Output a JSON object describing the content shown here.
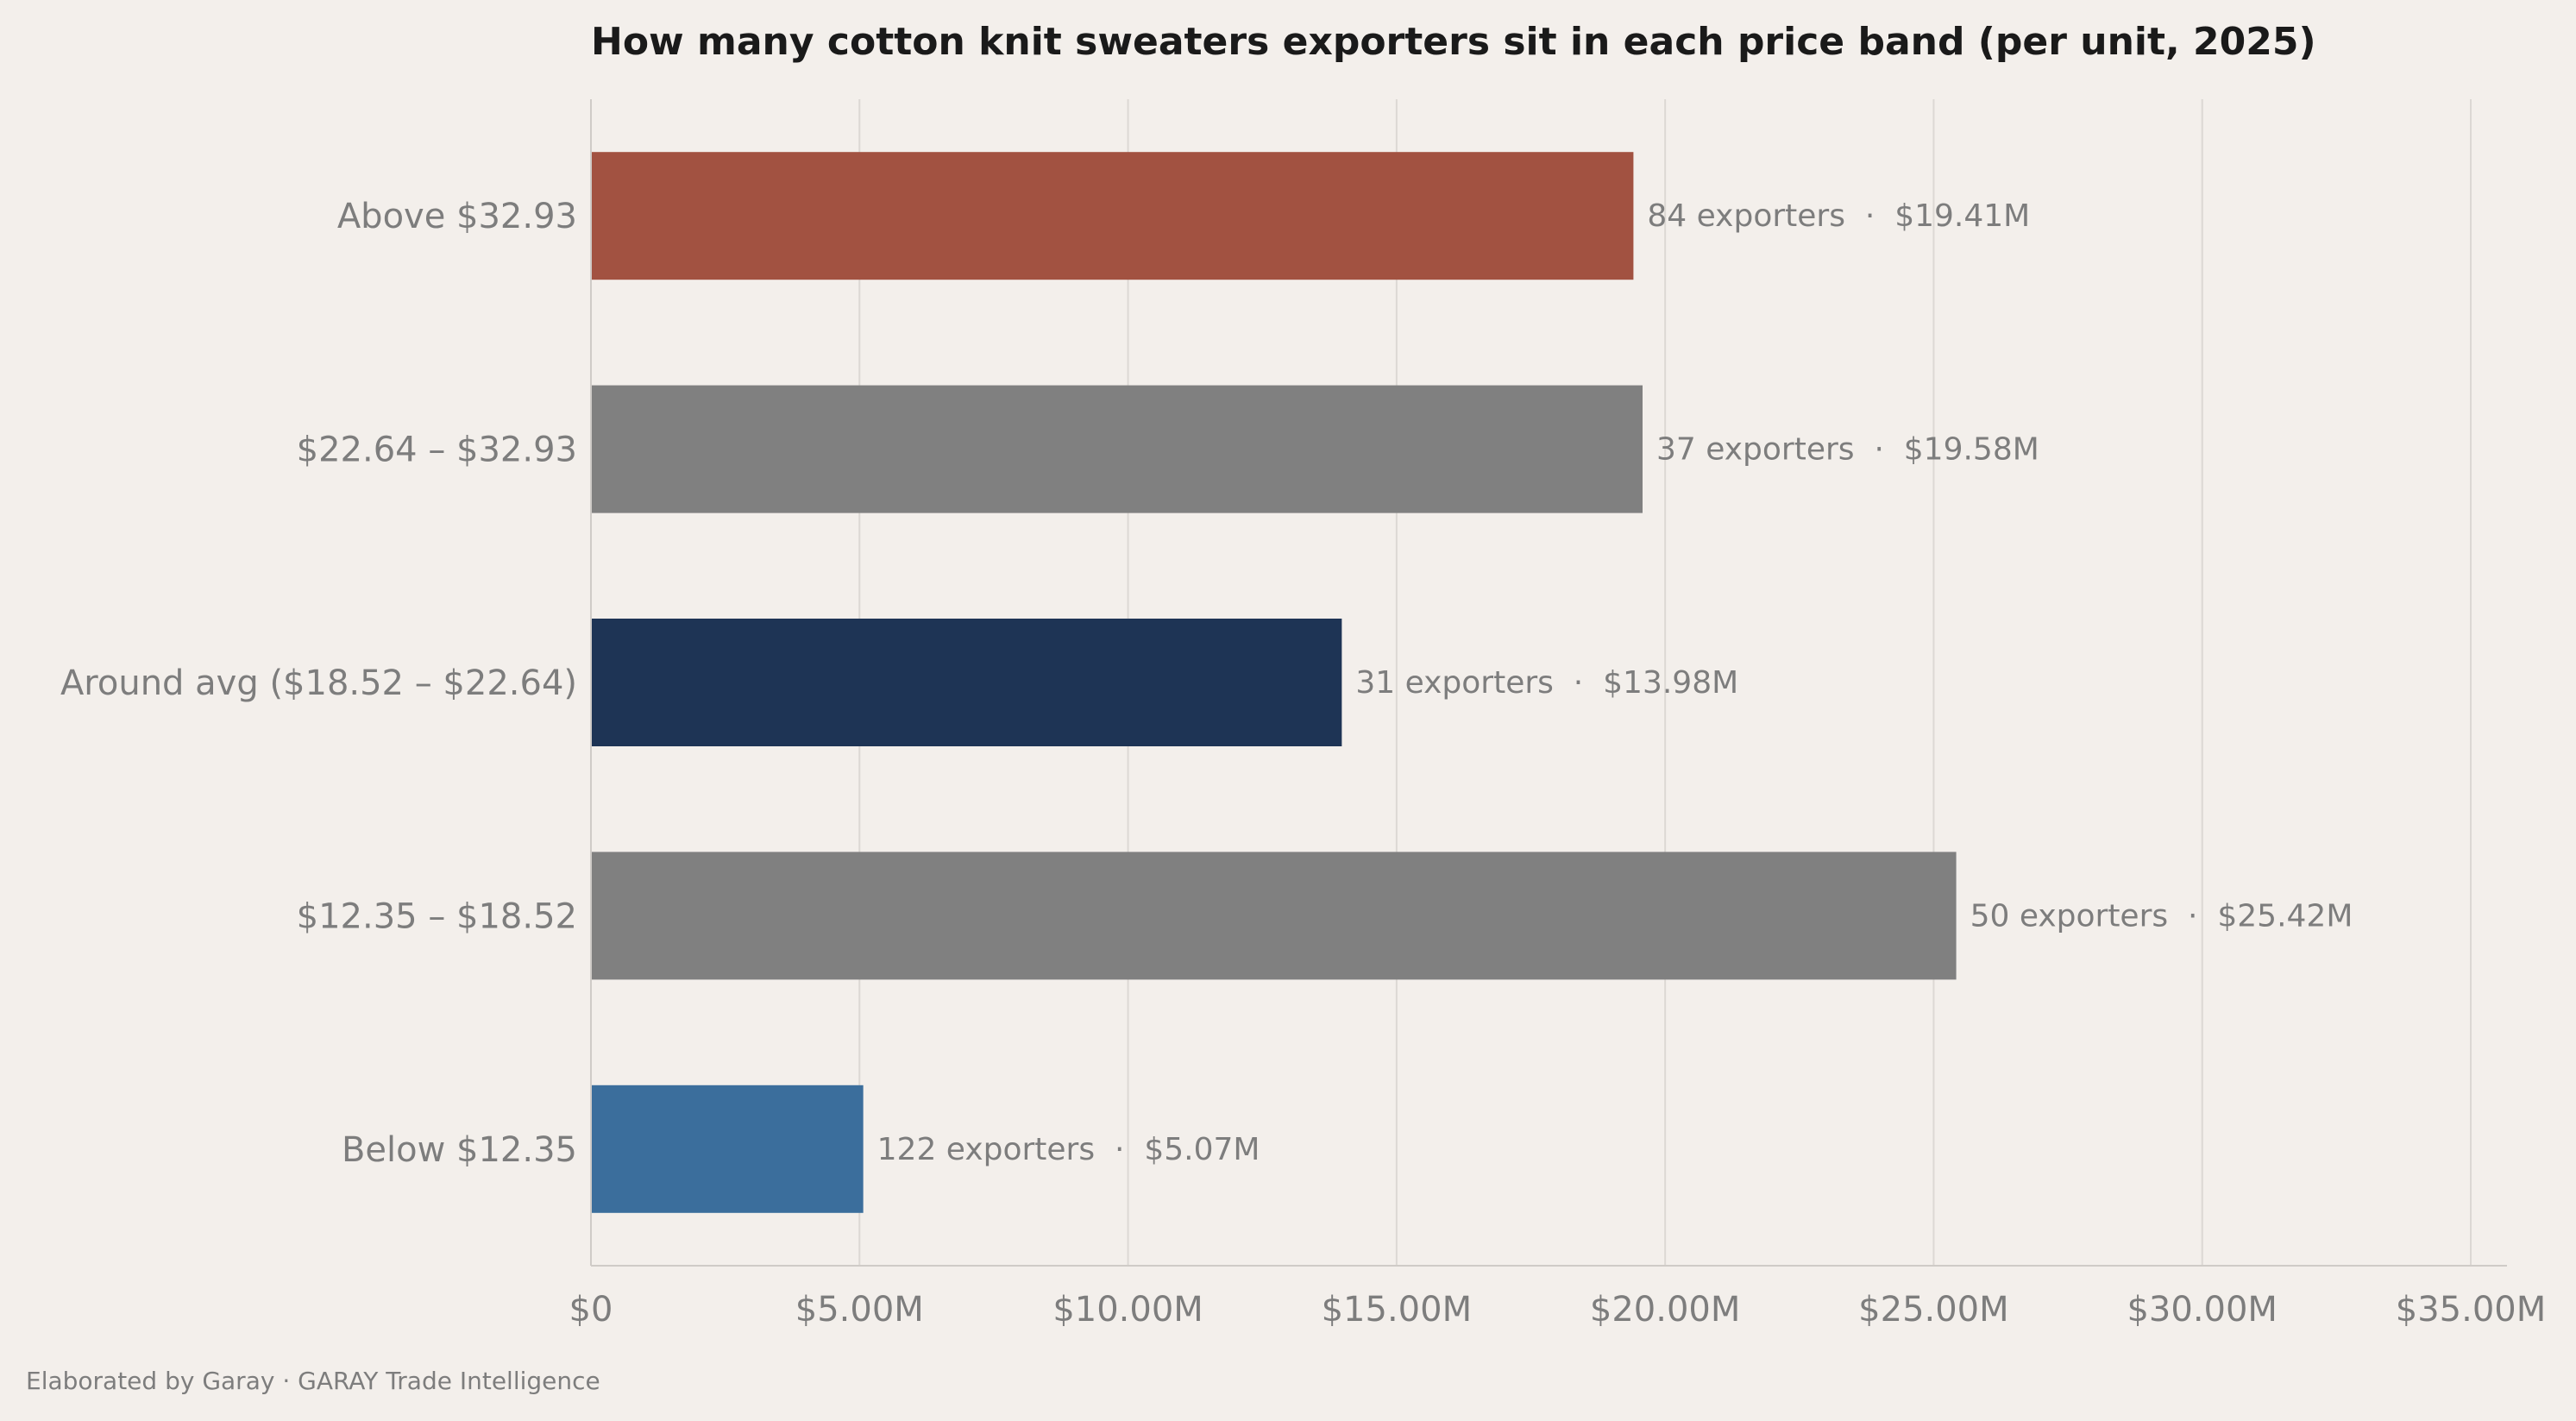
{
  "chart_data": {
    "type": "bar",
    "orientation": "horizontal",
    "title": "How many cotton knit sweaters exporters sit in each price band (per unit, 2025)",
    "xlabel": "",
    "ylabel": "",
    "xlim": [
      0,
      35000000
    ],
    "x_ticks": [
      0,
      5000000,
      10000000,
      15000000,
      20000000,
      25000000,
      30000000,
      35000000
    ],
    "x_tick_labels": [
      "$0",
      "$5.00M",
      "$10.00M",
      "$15.00M",
      "$20.00M",
      "$25.00M",
      "$30.00M",
      "$35.00M"
    ],
    "grid": "vertical",
    "categories": [
      "Above $32.93",
      "$22.64 – $32.93",
      "Around avg ($18.52 – $22.64)",
      "$12.35 – $18.52",
      "Below $12.35"
    ],
    "values": [
      19410000,
      19580000,
      13980000,
      25420000,
      5070000
    ],
    "exporters": [
      84,
      37,
      31,
      50,
      122
    ],
    "data_labels": [
      "84 exporters  ·  $19.41M",
      "37 exporters  ·  $19.58M",
      "31 exporters  ·  $13.98M",
      "50 exporters  ·  $25.42M",
      "122 exporters  ·  $5.07M"
    ],
    "colors": [
      "#a25241",
      "#808080",
      "#1e3455",
      "#808080",
      "#3b6e9c"
    ]
  },
  "footer": {
    "credit": "Elaborated by Garay  ·  GARAY Trade Intelligence"
  },
  "theme": {
    "background": "#f3efeb"
  }
}
